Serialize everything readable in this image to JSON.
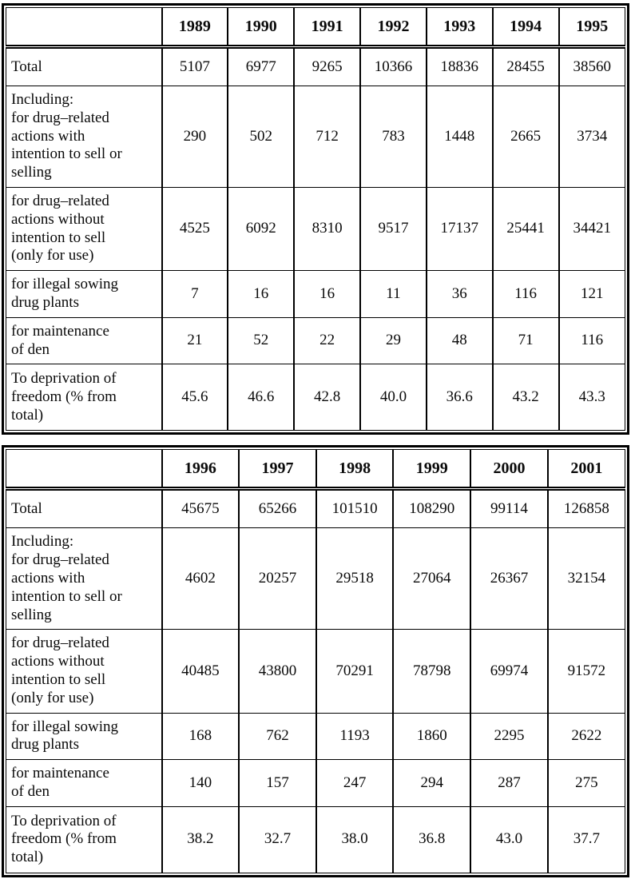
{
  "tables": [
    {
      "name": "convictions-1989-1995",
      "years": [
        "1989",
        "1990",
        "1991",
        "1992",
        "1993",
        "1994",
        "1995"
      ],
      "rows": [
        {
          "label": "Total",
          "values": [
            "5107",
            "6977",
            "9265",
            "10366",
            "18836",
            "28455",
            "38560"
          ]
        },
        {
          "label": "Including:\nfor drug–related\nactions with\nintention to sell or\nselling",
          "values": [
            "290",
            "502",
            "712",
            "783",
            "1448",
            "2665",
            "3734"
          ]
        },
        {
          "label": "for drug–related\nactions without\nintention to sell\n(only for use)",
          "values": [
            "4525",
            "6092",
            "8310",
            "9517",
            "17137",
            "25441",
            "34421"
          ]
        },
        {
          "label": "for  illegal sowing\ndrug plants",
          "values": [
            "7",
            "16",
            "16",
            "11",
            "36",
            "116",
            "121"
          ]
        },
        {
          "label": "for  maintenance\nof den",
          "values": [
            "21",
            "52",
            "22",
            "29",
            "48",
            "71",
            "116"
          ]
        },
        {
          "label": "To deprivation of\nfreedom (% from\ntotal)",
          "values": [
            "45.6",
            "46.6",
            "42.8",
            "40.0",
            "36.6",
            "43.2",
            "43.3"
          ]
        }
      ]
    },
    {
      "name": "convictions-1996-2001",
      "years": [
        "1996",
        "1997",
        "1998",
        "1999",
        "2000",
        "2001"
      ],
      "rows": [
        {
          "label": "Total",
          "values": [
            "45675",
            "65266",
            "101510",
            "108290",
            "99114",
            "126858"
          ]
        },
        {
          "label": "Including:\nfor drug–related\nactions with\nintention to sell or\nselling",
          "values": [
            "4602",
            "20257",
            "29518",
            "27064",
            "26367",
            "32154"
          ]
        },
        {
          "label": "for drug–related\nactions without\nintention to sell\n(only for use)",
          "values": [
            "40485",
            "43800",
            "70291",
            "78798",
            "69974",
            "91572"
          ]
        },
        {
          "label": "for  illegal sowing\ndrug plants",
          "values": [
            "168",
            "762",
            "1193",
            "1860",
            "2295",
            "2622"
          ]
        },
        {
          "label": "for  maintenance\nof den",
          "values": [
            "140",
            "157",
            "247",
            "294",
            "287",
            "275"
          ]
        },
        {
          "label": "To deprivation of\nfreedom (% from\ntotal)",
          "values": [
            "38.2",
            "32.7",
            "38.0",
            "36.8",
            "43.0",
            "37.7"
          ]
        }
      ]
    }
  ],
  "colors": {
    "border": "#000000",
    "text": "#0a0a0a",
    "background": "#ffffff"
  }
}
